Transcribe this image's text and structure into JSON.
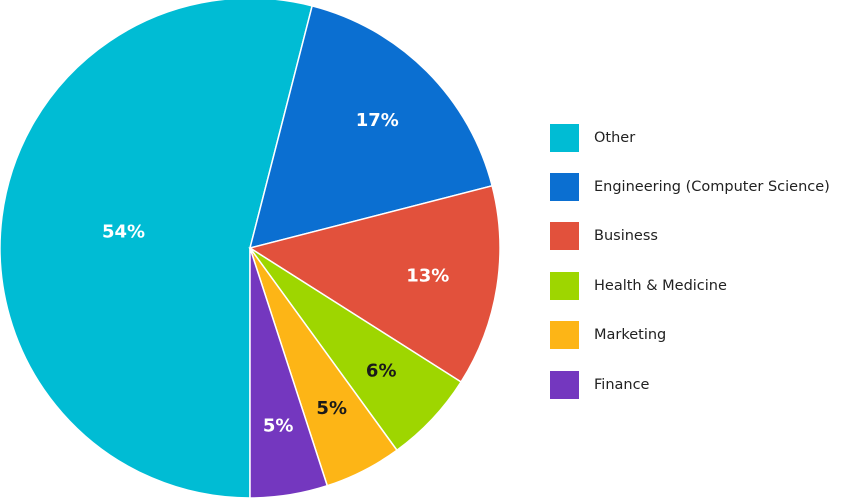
{
  "chart_data": {
    "type": "pie",
    "title": "",
    "legend_position": "right",
    "slices": [
      {
        "name": "Other",
        "value": 54,
        "label": "54%",
        "color": "#00BCD4",
        "label_color": "#ffffff"
      },
      {
        "name": "Engineering (Computer Science)",
        "value": 17,
        "label": "17%",
        "color": "#0B6FD1",
        "label_color": "#ffffff"
      },
      {
        "name": "Business",
        "value": 13,
        "label": "13%",
        "color": "#E2513C",
        "label_color": "#ffffff"
      },
      {
        "name": "Health & Medicine",
        "value": 6,
        "label": "6%",
        "color": "#9ED600",
        "label_color": "#1a1a1a"
      },
      {
        "name": "Marketing",
        "value": 5,
        "label": "5%",
        "color": "#FDB516",
        "label_color": "#1a1a1a"
      },
      {
        "name": "Finance",
        "value": 5,
        "label": "5%",
        "color": "#7437BF",
        "label_color": "#ffffff"
      }
    ]
  }
}
